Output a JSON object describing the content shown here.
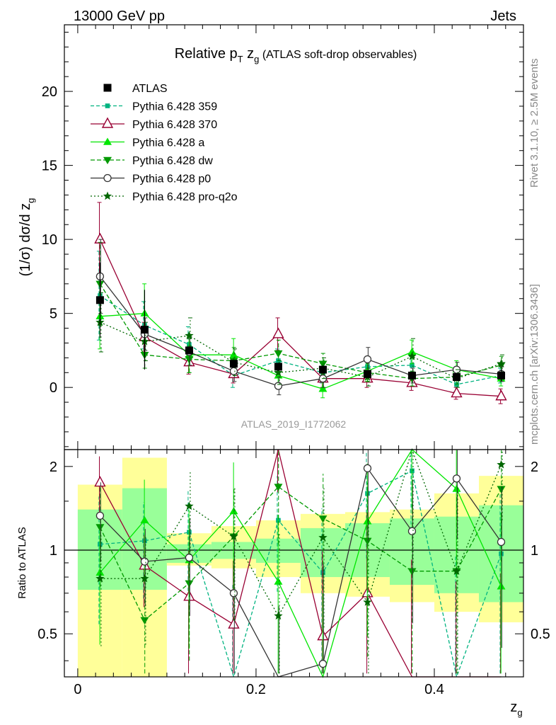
{
  "header": {
    "left": "13000 GeV pp",
    "right": "Jets"
  },
  "side_labels": {
    "rivet": "Rivet 3.1.10, ≥ 2.5M events",
    "mcplots": "mcplots.cern.ch [arXiv:1306.3436]"
  },
  "watermark": "ATLAS_2019_I1772062",
  "chart_data": {
    "type": "line",
    "title_parts": {
      "rel": "Relative p",
      "sub_t": "T",
      "zg": " z",
      "sub_g": "g",
      "rest": " (ATLAS soft-drop observables)"
    },
    "ylabel": "(1/σ) dσ/d z",
    "ylabel_sub": "g",
    "xlabel": "z",
    "xlabel_sub": "g",
    "ratio_ylabel": "Ratio to ATLAS",
    "xlim": [
      -0.015,
      0.5
    ],
    "ylim": [
      -4.2,
      24.5
    ],
    "ratio_ylim": [
      0.35,
      2.3
    ],
    "x_ticks": [
      0,
      0.2,
      0.4
    ],
    "x_tick_labels": [
      "0",
      "0.2",
      "0.4"
    ],
    "y_ticks": [
      0,
      5,
      10,
      15,
      20
    ],
    "y_tick_labels": [
      "0",
      "5",
      "10",
      "15",
      "20"
    ],
    "ratio_ticks": [
      0.5,
      1,
      2
    ],
    "ratio_tick_labels": [
      "0.5",
      "1",
      "2"
    ],
    "x": [
      0.025,
      0.075,
      0.125,
      0.175,
      0.225,
      0.275,
      0.325,
      0.375,
      0.425,
      0.475
    ],
    "bin_edges": [
      0,
      0.05,
      0.1,
      0.15,
      0.2,
      0.25,
      0.3,
      0.35,
      0.4,
      0.45,
      0.5
    ],
    "data": {
      "name": "ATLAS",
      "values": [
        5.9,
        3.9,
        2.5,
        1.6,
        1.4,
        1.2,
        0.9,
        0.8,
        0.7,
        0.8
      ],
      "band_inner": [
        [
          0.72,
          1.4
        ],
        [
          0.72,
          1.67
        ],
        [
          0.9,
          1.05
        ],
        [
          0.93,
          1.07
        ],
        [
          0.9,
          1.1
        ],
        [
          0.8,
          1.2
        ],
        [
          0.8,
          1.25
        ],
        [
          0.75,
          1.3
        ],
        [
          0.7,
          1.32
        ],
        [
          0.65,
          1.45
        ]
      ],
      "band_outer": [
        [
          0.3,
          1.72
        ],
        [
          0.3,
          2.15
        ],
        [
          0.88,
          1.15
        ],
        [
          0.86,
          1.22
        ],
        [
          0.8,
          1.28
        ],
        [
          0.7,
          1.35
        ],
        [
          0.68,
          1.37
        ],
        [
          0.65,
          1.4
        ],
        [
          0.6,
          1.6
        ],
        [
          0.55,
          1.85
        ]
      ]
    },
    "series": [
      {
        "name": "Pythia 6.428 359",
        "color": "#00b380",
        "dash": "5,3",
        "marker": "square",
        "values": [
          6.2,
          4.2,
          2.9,
          0.8,
          1.8,
          1.0,
          1.4,
          1.5,
          0.2,
          0.8
        ],
        "ratio": [
          1.05,
          1.08,
          1.16,
          0.25,
          1.28,
          0.83,
          1.6,
          1.93,
          0.25,
          0.97
        ],
        "err": [
          3.0,
          1.6,
          1.2,
          0.8,
          0.8,
          0.7,
          0.6,
          0.6,
          0.5,
          0.5
        ]
      },
      {
        "name": "Pythia 6.428 370",
        "color": "#990033",
        "dash": "",
        "marker": "triangle-open",
        "values": [
          10.0,
          3.4,
          1.7,
          0.9,
          3.6,
          0.6,
          0.6,
          0.3,
          -0.4,
          -0.6
        ],
        "ratio": [
          1.75,
          0.88,
          0.68,
          0.54,
          2.4,
          0.49,
          0.7,
          0.3,
          0.2,
          0.2
        ],
        "err": [
          2.5,
          1.0,
          0.8,
          0.6,
          1.1,
          0.6,
          0.6,
          0.5,
          0.4,
          0.5
        ]
      },
      {
        "name": "Pythia 6.428 a",
        "color": "#00e600",
        "dash": "",
        "marker": "triangle",
        "values": [
          4.8,
          5.0,
          2.2,
          2.2,
          0.8,
          -0.1,
          1.1,
          2.4,
          1.2,
          0.6
        ],
        "ratio": [
          0.83,
          1.28,
          0.92,
          1.38,
          0.77,
          0.2,
          1.27,
          2.4,
          1.66,
          0.74
        ],
        "err": [
          2.2,
          2.0,
          1.2,
          1.1,
          0.8,
          0.6,
          0.7,
          0.8,
          0.6,
          0.5
        ]
      },
      {
        "name": "Pythia 6.428 dw",
        "color": "#009900",
        "dash": "6,3",
        "marker": "triangle-down",
        "values": [
          7.0,
          2.2,
          1.9,
          1.8,
          2.3,
          1.6,
          1.0,
          0.6,
          0.7,
          1.5
        ],
        "ratio": [
          1.21,
          0.56,
          0.76,
          1.12,
          1.69,
          1.3,
          1.08,
          0.84,
          0.84,
          1.66
        ],
        "err": [
          2.8,
          0.9,
          0.9,
          0.9,
          0.9,
          0.7,
          0.6,
          0.5,
          0.5,
          0.6
        ]
      },
      {
        "name": "Pythia 6.428 p0",
        "color": "#333333",
        "dash": "",
        "marker": "circle-open",
        "values": [
          7.5,
          3.6,
          2.4,
          1.1,
          0.1,
          0.6,
          1.9,
          0.8,
          1.2,
          0.9
        ],
        "ratio": [
          1.33,
          0.91,
          0.94,
          0.7,
          0.2,
          0.39,
          1.97,
          1.17,
          1.81,
          1.07
        ],
        "err": [
          2.5,
          1.1,
          0.9,
          0.7,
          0.6,
          0.6,
          0.8,
          0.5,
          0.5,
          0.5
        ]
      },
      {
        "name": "Pythia 6.428 pro-q2o",
        "color": "#006600",
        "dash": "2,3",
        "marker": "star",
        "values": [
          4.4,
          3.1,
          3.5,
          1.7,
          1.0,
          1.3,
          0.7,
          2.1,
          0.6,
          1.6
        ],
        "ratio": [
          0.79,
          0.79,
          1.44,
          1.12,
          0.58,
          1.11,
          0.65,
          2.4,
          0.84,
          2.03
        ],
        "err": [
          2.0,
          1.3,
          1.2,
          0.9,
          0.8,
          0.7,
          0.6,
          1.2,
          0.6,
          0.6
        ]
      }
    ]
  }
}
